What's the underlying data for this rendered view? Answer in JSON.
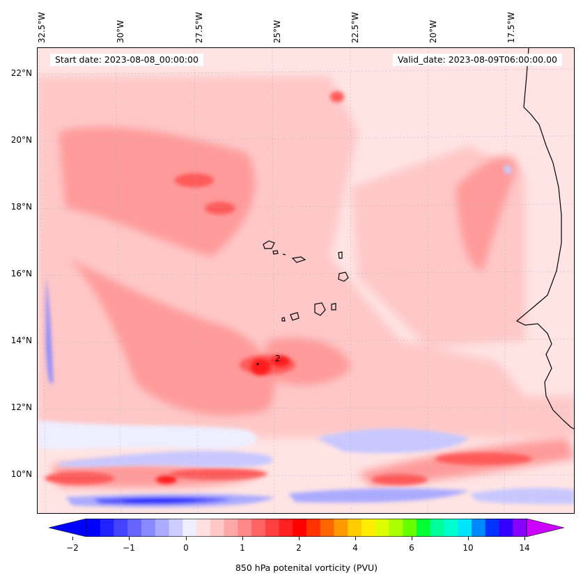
{
  "header": {
    "start_date": "Start date: 2023-08-08_00:00:00",
    "valid_date": "Valid_date: 2023-08-09T06:00:00.00"
  },
  "map": {
    "longitude_labels": [
      "32.5°W",
      "30°W",
      "27.5°W",
      "25°W",
      "22.5°W",
      "20°W",
      "17.5°W"
    ],
    "latitude_labels": [
      "22°N",
      "20°N",
      "18°N",
      "16°N",
      "14°N",
      "12°N",
      "10°N"
    ],
    "contour_label": "2",
    "colors": {
      "background_pv": "#ffe4e4",
      "low_positive": "#ffc8c8",
      "mid_positive": "#ff9a9a",
      "high_positive": "#ff5a5a",
      "peak": "#ff1a1a",
      "negative_light": "#c8c8ff",
      "negative_mid": "#7a7aff",
      "negative_strong": "#1a1aff",
      "coastline": "#000000"
    }
  },
  "colorbar": {
    "label": "850 hPa potenital vorticity (PVU)",
    "tick_labels": [
      "−2",
      "−1",
      "0",
      "1",
      "2",
      "4",
      "6",
      "10",
      "14"
    ],
    "colors": [
      "#0000ff",
      "#2222ff",
      "#4444ff",
      "#6666ff",
      "#8888ff",
      "#aaaaff",
      "#ccccff",
      "#eeeeff",
      "#ffe0e0",
      "#ffc8c8",
      "#ffa8a8",
      "#ff8888",
      "#ff6464",
      "#ff4040",
      "#ff2020",
      "#ff0000",
      "#ff3300",
      "#ff6600",
      "#ff9900",
      "#ffcc00",
      "#ffee00",
      "#ddff00",
      "#aaff00",
      "#66ff00",
      "#00ff33",
      "#00ff99",
      "#00ffcc",
      "#00e5ff",
      "#0088ff",
      "#0033ff",
      "#3300ff",
      "#8800ff"
    ],
    "extend_low_color": "#0000ff",
    "extend_high_color": "#cc00ff"
  }
}
